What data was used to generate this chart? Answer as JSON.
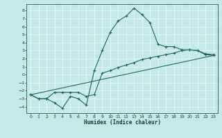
{
  "xlabel": "Humidex (Indice chaleur)",
  "xlim": [
    -0.5,
    23.5
  ],
  "ylim": [
    -4.8,
    8.8
  ],
  "yticks": [
    -4,
    -3,
    -2,
    -1,
    0,
    1,
    2,
    3,
    4,
    5,
    6,
    7,
    8
  ],
  "xticks": [
    0,
    1,
    2,
    3,
    4,
    5,
    6,
    7,
    8,
    9,
    10,
    11,
    12,
    13,
    14,
    15,
    16,
    17,
    18,
    19,
    20,
    21,
    22,
    23
  ],
  "bg_color": "#c5e8e8",
  "grid_color": "#b0d8d8",
  "line_color": "#1a6a5a",
  "line1_x": [
    0,
    1,
    2,
    3,
    4,
    5,
    6,
    7,
    8,
    9,
    10,
    11,
    12,
    13,
    14,
    15,
    16,
    17,
    18,
    19,
    20,
    21,
    22,
    23
  ],
  "line1_y": [
    -2.5,
    -3.0,
    -3.0,
    -3.5,
    -4.2,
    -2.7,
    -3.0,
    -3.8,
    0.5,
    3.0,
    5.3,
    6.7,
    7.3,
    8.3,
    7.5,
    6.5,
    3.8,
    3.5,
    3.5,
    3.1,
    3.1,
    3.0,
    2.6,
    2.5
  ],
  "line2_x": [
    0,
    1,
    2,
    3,
    4,
    5,
    6,
    7,
    8,
    9,
    10,
    11,
    12,
    13,
    14,
    15,
    16,
    17,
    18,
    19,
    20,
    21,
    22,
    23
  ],
  "line2_y": [
    -2.5,
    -3.0,
    -3.0,
    -2.2,
    -2.2,
    -2.2,
    -2.2,
    -2.7,
    -2.5,
    0.2,
    0.5,
    0.9,
    1.2,
    1.5,
    1.9,
    2.1,
    2.3,
    2.5,
    2.7,
    3.0,
    3.1,
    3.0,
    2.5,
    2.4
  ],
  "line3_x": [
    0,
    23
  ],
  "line3_y": [
    -2.5,
    2.4
  ]
}
